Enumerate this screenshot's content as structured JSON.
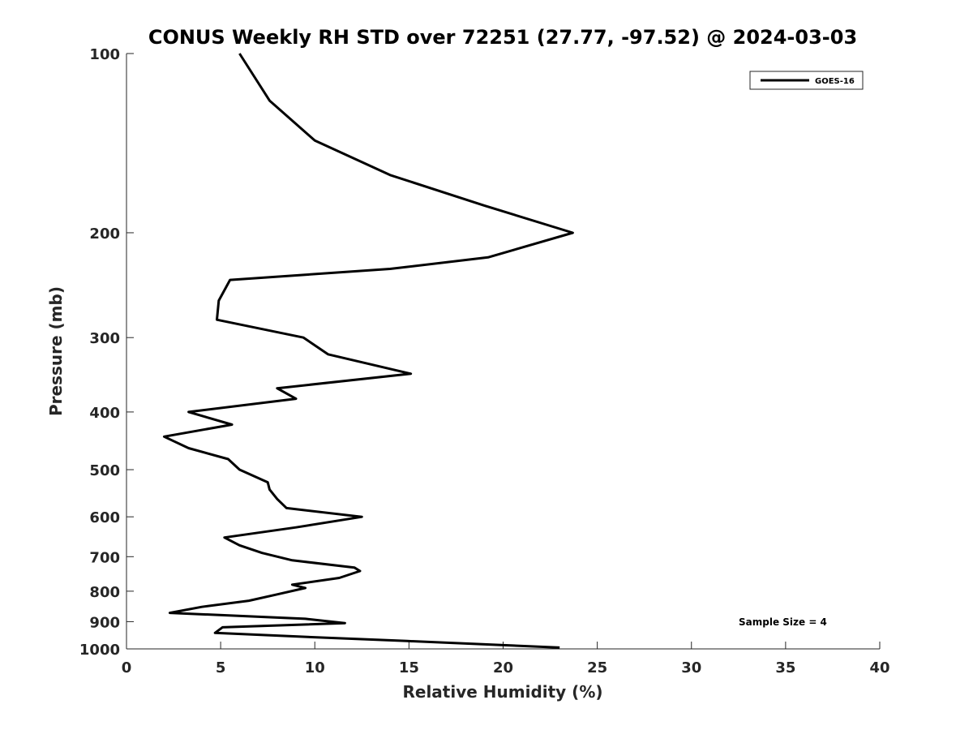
{
  "chart_data": {
    "type": "line",
    "title": "CONUS Weekly RH STD over 72251 (27.77, -97.52) @ 2024-03-03",
    "xlabel": "Relative Humidity (%)",
    "ylabel": "Pressure (mb)",
    "xlim": [
      0,
      40
    ],
    "ylim": [
      100,
      1000
    ],
    "yscale": "log",
    "yreversed": true,
    "grid": false,
    "legend_position": "top-right",
    "x_ticks": [
      0,
      5,
      10,
      15,
      20,
      25,
      30,
      35,
      40
    ],
    "y_ticks": [
      100,
      200,
      300,
      400,
      500,
      600,
      700,
      800,
      900,
      1000
    ],
    "series": [
      {
        "name": "GOES-16",
        "color": "#000000",
        "points": [
          [
            6.0,
            100
          ],
          [
            7.6,
            120
          ],
          [
            10.0,
            140
          ],
          [
            14.0,
            160
          ],
          [
            19.0,
            180
          ],
          [
            23.7,
            200
          ],
          [
            19.2,
            220
          ],
          [
            14.0,
            230
          ],
          [
            5.5,
            240
          ],
          [
            4.9,
            260
          ],
          [
            4.8,
            280
          ],
          [
            9.4,
            300
          ],
          [
            10.7,
            320
          ],
          [
            15.1,
            345
          ],
          [
            8.0,
            365
          ],
          [
            9.0,
            380
          ],
          [
            3.3,
            400
          ],
          [
            5.6,
            420
          ],
          [
            2.0,
            440
          ],
          [
            3.3,
            460
          ],
          [
            5.4,
            480
          ],
          [
            6.0,
            500
          ],
          [
            7.5,
            525
          ],
          [
            7.6,
            540
          ],
          [
            8.0,
            560
          ],
          [
            8.5,
            580
          ],
          [
            12.5,
            600
          ],
          [
            9.0,
            625
          ],
          [
            5.2,
            650
          ],
          [
            6.0,
            670
          ],
          [
            7.2,
            690
          ],
          [
            8.8,
            710
          ],
          [
            12.1,
            730
          ],
          [
            12.4,
            740
          ],
          [
            11.3,
            760
          ],
          [
            8.8,
            780
          ],
          [
            9.5,
            790
          ],
          [
            8.0,
            810
          ],
          [
            6.5,
            830
          ],
          [
            4.0,
            850
          ],
          [
            2.3,
            870
          ],
          [
            9.5,
            890
          ],
          [
            11.6,
            905
          ],
          [
            5.1,
            920
          ],
          [
            4.7,
            940
          ],
          [
            9.6,
            955
          ],
          [
            14.9,
            970
          ],
          [
            19.9,
            985
          ],
          [
            23.0,
            995
          ]
        ]
      }
    ],
    "annotations": [
      "Sample Size = 4"
    ]
  }
}
